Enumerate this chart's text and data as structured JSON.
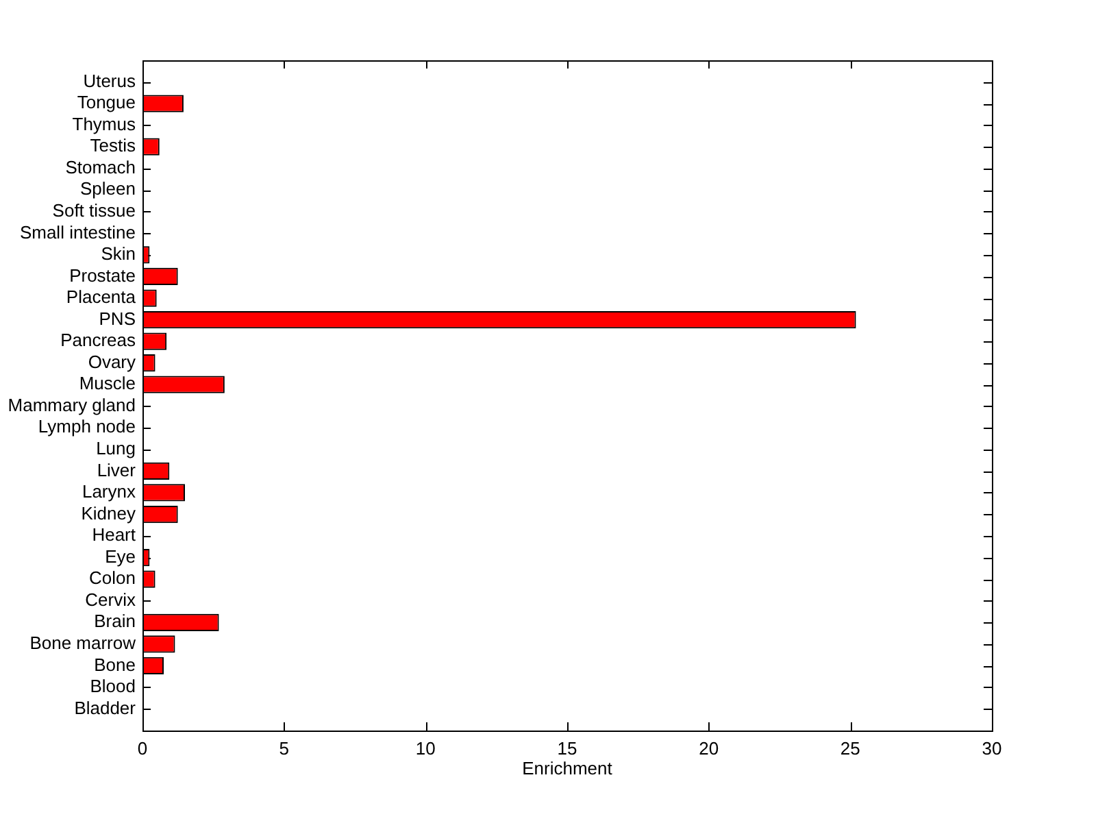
{
  "chart_data": {
    "type": "bar",
    "orientation": "horizontal",
    "xlabel": "Enrichment",
    "categories": [
      "Uterus",
      "Tongue",
      "Thymus",
      "Testis",
      "Stomach",
      "Spleen",
      "Soft tissue",
      "Small intestine",
      "Skin",
      "Prostate",
      "Placenta",
      "PNS",
      "Pancreas",
      "Ovary",
      "Muscle",
      "Mammary gland",
      "Lymph node",
      "Lung",
      "Liver",
      "Larynx",
      "Kidney",
      "Heart",
      "Eye",
      "Colon",
      "Cervix",
      "Brain",
      "Bone marrow",
      "Bone",
      "Blood",
      "Bladder"
    ],
    "values": [
      0,
      1.45,
      0,
      0.6,
      0,
      0,
      0,
      0,
      0.25,
      1.25,
      0.5,
      25.2,
      0.85,
      0.45,
      2.9,
      0,
      0,
      0,
      0.95,
      1.5,
      1.25,
      0,
      0.25,
      0.45,
      0,
      2.7,
      1.15,
      0.75,
      0,
      0
    ],
    "color": "#ff0000",
    "xlim": [
      0,
      30
    ],
    "xticks": [
      0,
      5,
      10,
      15,
      20,
      25,
      30
    ]
  }
}
